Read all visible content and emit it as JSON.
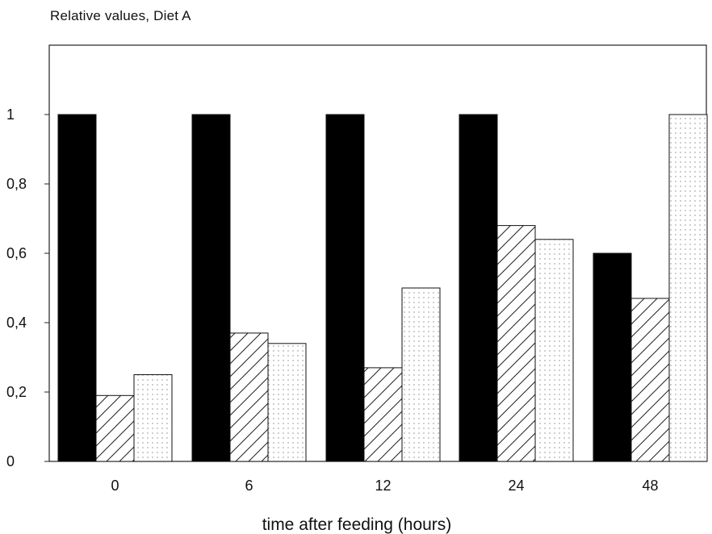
{
  "chart_data": {
    "type": "bar",
    "title": "Relative values, Diet A",
    "xlabel": "time after feeding (hours)",
    "ylabel": "",
    "ylim": [
      0,
      1.2
    ],
    "yticks": [
      "0",
      "0,2",
      "0,4",
      "0,6",
      "0,8",
      "1"
    ],
    "ytick_values": [
      0,
      0.2,
      0.4,
      0.6,
      0.8,
      1.0
    ],
    "categories": [
      "0",
      "6",
      "12",
      "24",
      "48"
    ],
    "grid": false,
    "legend": "none",
    "series": [
      {
        "fill": "solid",
        "color": "#000000",
        "values": [
          1.0,
          1.0,
          1.0,
          1.0,
          0.6
        ]
      },
      {
        "fill": "hatched",
        "color": "#222222",
        "values": [
          0.19,
          0.37,
          0.27,
          0.68,
          0.47
        ]
      },
      {
        "fill": "dotted",
        "color": "#555555",
        "values": [
          0.25,
          0.34,
          0.5,
          0.64,
          1.0
        ]
      }
    ]
  }
}
